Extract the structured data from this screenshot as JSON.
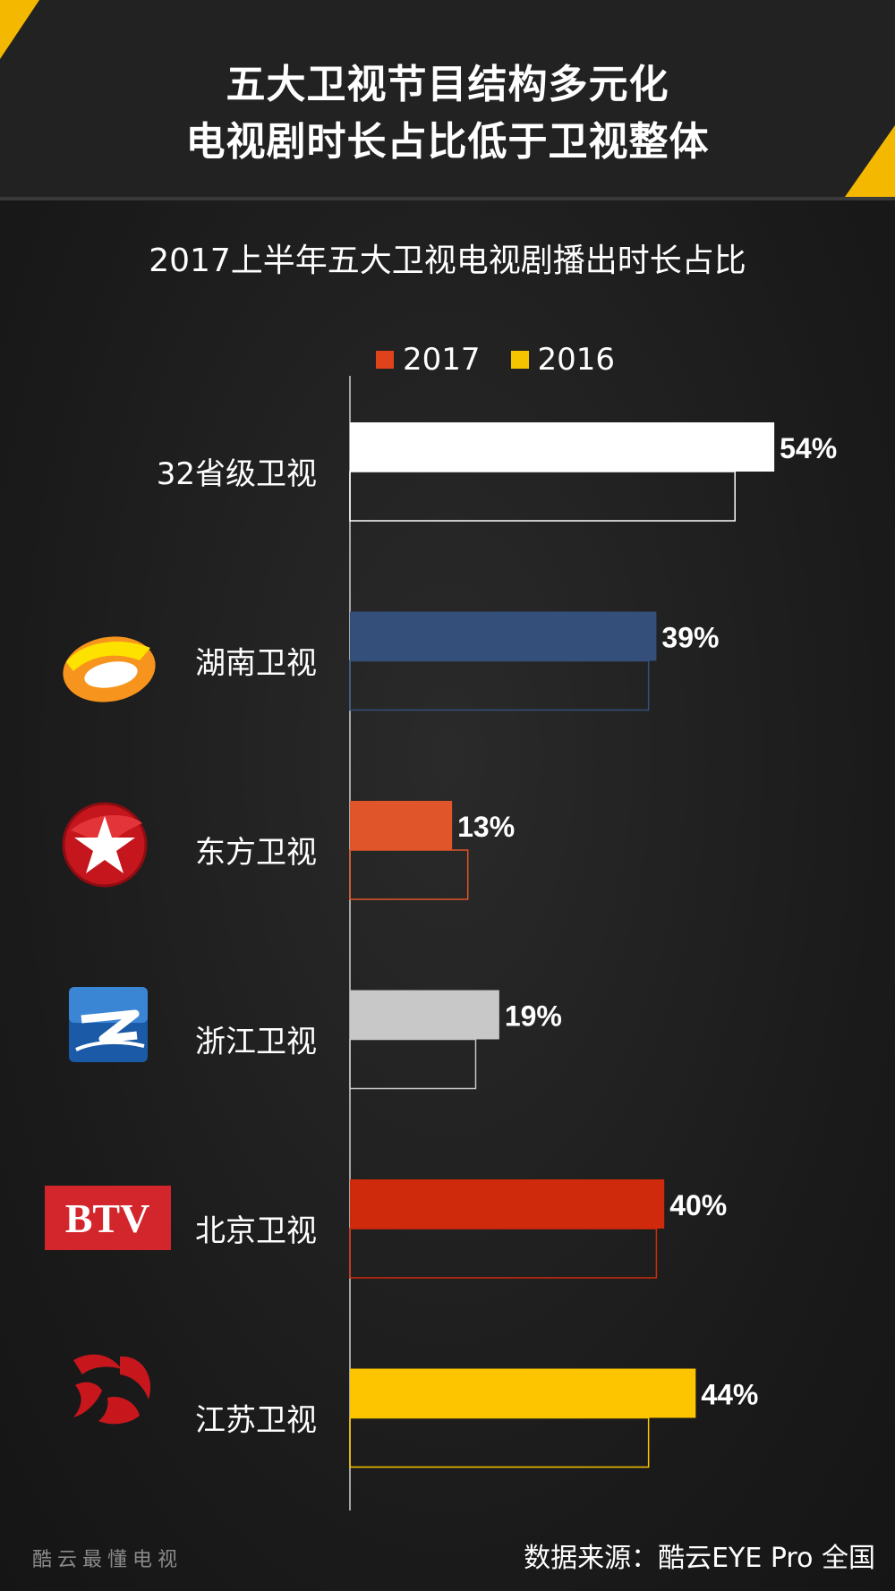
{
  "header": {
    "title_line1": "五大卫视节目结构多元化",
    "title_line2": "电视剧时长占比低于卫视整体"
  },
  "colors": {
    "accent": "#f5b800",
    "legend_2017": "#e0431c",
    "legend_2016": "#f5c400"
  },
  "chart_data": {
    "type": "bar",
    "orientation": "horizontal",
    "title": "2017上半年五大卫视电视剧播出时长占比",
    "categories": [
      "32省级卫视",
      "湖南卫视",
      "东方卫视",
      "浙江卫视",
      "北京卫视",
      "江苏卫视"
    ],
    "series": [
      {
        "name": "2017",
        "values": [
          54,
          39,
          13,
          19,
          40,
          44
        ],
        "labels": [
          "54%",
          "39%",
          "13%",
          "19%",
          "40%",
          "44%"
        ]
      },
      {
        "name": "2016",
        "values": [
          49,
          38,
          15,
          16,
          39,
          38
        ]
      }
    ],
    "bar_colors": [
      "#ffffff",
      "#344f7a",
      "#e0552a",
      "#c8c8c8",
      "#d02a0c",
      "#fcc500"
    ],
    "unit": "%",
    "legend_position": "top",
    "grid": false,
    "xlim": [
      0,
      60
    ]
  },
  "logos": [
    "hunan-tv-logo",
    "dragon-tv-logo",
    "zhejiang-tv-logo",
    "btv-logo",
    "jiangsu-tv-logo"
  ],
  "btv_logo_text": "BTV",
  "footer": {
    "left_watermark": "酷云最懂电视",
    "source": "数据来源：酷云EYE Pro 全国"
  }
}
